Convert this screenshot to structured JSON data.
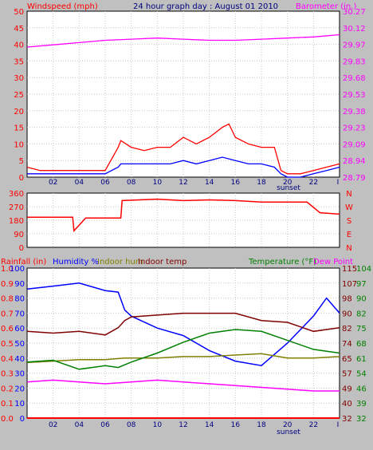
{
  "header": {
    "left_label": "Windspeed (mph)",
    "title": "24 hour graph day : August 01 2010",
    "right_label": "Barometer (in.)"
  },
  "colors": {
    "background": "#c0c0c0",
    "plot_bg": "#ffffff",
    "gust": "#ff0000",
    "wind_avg": "#0000ff",
    "barometer": "#ff00ff",
    "humidity": "#0000ff",
    "indoor_hum": "#808000",
    "indoor_temp": "#800000",
    "temperature": "#008000",
    "dew_point": "#ff00ff",
    "rainfall": "#ff0000",
    "direction": "#ff0000"
  },
  "bottom_header": {
    "rainfall": "Rainfall (in)",
    "humidity": "Humidity %",
    "indoor_hum": "Indoor hum",
    "indoor_temp": "Indoor temp",
    "temperature": "Temperature (°F)",
    "dew_point": "Dew Point"
  },
  "sunset_label": "sunset",
  "chart_data": [
    {
      "type": "line",
      "name": "wind-barometer",
      "x_ticks": [
        "02",
        "04",
        "06",
        "08",
        "10",
        "12",
        "14",
        "16",
        "18",
        "20",
        "22"
      ],
      "y_left_ticks": [
        "0",
        "5",
        "10",
        "15",
        "20",
        "25",
        "30",
        "35",
        "40",
        "45",
        "50"
      ],
      "y_right_ticks": [
        "28.79",
        "28.94",
        "29.09",
        "29.23",
        "29.38",
        "29.53",
        "29.68",
        "29.83",
        "29.97",
        "30.12",
        "30.27"
      ],
      "ylim_left": [
        0,
        50
      ],
      "ylim_right": [
        28.79,
        30.27
      ],
      "series": [
        {
          "name": "Windspeed (mph)",
          "axis": "left",
          "color": "gust",
          "x": [
            0,
            1,
            2,
            3,
            4,
            5,
            6,
            7,
            7.2,
            8,
            9,
            10,
            11,
            12,
            13,
            14,
            15,
            15.5,
            16,
            17,
            18,
            19,
            19.5,
            20,
            21,
            22,
            23,
            24
          ],
          "y": [
            3,
            2,
            2,
            2,
            2,
            2,
            2,
            9,
            11,
            9,
            8,
            9,
            9,
            12,
            10,
            12,
            15,
            16,
            12,
            10,
            9,
            9,
            2,
            1,
            1,
            2,
            3,
            4
          ]
        },
        {
          "name": "Windspeed avg",
          "axis": "left",
          "color": "wind_avg",
          "x": [
            0,
            1,
            2,
            3,
            4,
            5,
            6,
            7,
            7.2,
            8,
            9,
            10,
            11,
            12,
            13,
            14,
            15,
            16,
            17,
            18,
            19,
            19.5,
            20,
            21,
            22,
            23,
            24
          ],
          "y": [
            1,
            1,
            1,
            1,
            1,
            1,
            1,
            3,
            4,
            4,
            4,
            4,
            4,
            5,
            4,
            5,
            6,
            5,
            4,
            4,
            3,
            1,
            0,
            0,
            1,
            2,
            3
          ]
        },
        {
          "name": "Barometer (in.)",
          "axis": "right",
          "color": "barometer",
          "x": [
            0,
            2,
            4,
            6,
            8,
            10,
            12,
            14,
            16,
            18,
            20,
            22,
            24
          ],
          "y": [
            29.95,
            29.97,
            29.99,
            30.01,
            30.02,
            30.03,
            30.02,
            30.01,
            30.01,
            30.02,
            30.03,
            30.04,
            30.06
          ]
        }
      ]
    },
    {
      "type": "line",
      "name": "wind-direction",
      "y_left_ticks": [
        "0",
        "90",
        "180",
        "270",
        "360"
      ],
      "y_right_ticks": [
        "N",
        "E",
        "S",
        "W",
        "N"
      ],
      "ylim": [
        0,
        360
      ],
      "series": [
        {
          "name": "Wind direction",
          "color": "direction",
          "x": [
            0,
            3.5,
            3.6,
            4.5,
            7.2,
            7.3,
            10,
            12,
            14,
            16,
            18,
            19.5,
            21.5,
            22.5,
            24
          ],
          "y": [
            200,
            200,
            110,
            195,
            195,
            310,
            320,
            310,
            315,
            310,
            300,
            300,
            300,
            230,
            220
          ]
        }
      ]
    },
    {
      "type": "line",
      "name": "temperature-humidity",
      "x_ticks": [
        "02",
        "04",
        "06",
        "08",
        "10",
        "12",
        "14",
        "16",
        "18",
        "20",
        "22"
      ],
      "y_left_outer_ticks": [
        "0.0",
        "0.1",
        "0.2",
        "0.3",
        "0.4",
        "0.5",
        "0.6",
        "0.7",
        "0.8",
        "0.9",
        "1.0"
      ],
      "y_left_inner_ticks": [
        "0",
        "10",
        "20",
        "30",
        "40",
        "50",
        "60",
        "70",
        "80",
        "90",
        "100"
      ],
      "y_right_inner_ticks": [
        "32",
        "40",
        "49",
        "57",
        "65",
        "74",
        "82",
        "90",
        "98",
        "107",
        "115"
      ],
      "y_right_outer_ticks": [
        "32",
        "39",
        "46",
        "54",
        "61",
        "68",
        "75",
        "82",
        "90",
        "97",
        "104"
      ],
      "ylim_humidity": [
        0,
        100
      ],
      "ylim_temp": [
        32,
        115
      ],
      "ylim_rain": [
        0,
        1
      ],
      "series": [
        {
          "name": "Humidity %",
          "axis": "humidity",
          "color": "humidity",
          "x": [
            0,
            2,
            4,
            6,
            7,
            7.5,
            8,
            10,
            12,
            14,
            16,
            18,
            20,
            22,
            23,
            24
          ],
          "y": [
            86,
            88,
            90,
            85,
            84,
            72,
            68,
            60,
            55,
            45,
            38,
            35,
            50,
            68,
            80,
            70
          ]
        },
        {
          "name": "Indoor hum",
          "axis": "humidity",
          "color": "indoor_hum",
          "x": [
            0,
            2,
            4,
            6,
            7.5,
            10,
            12,
            14,
            16,
            18,
            20,
            22,
            24
          ],
          "y": [
            37,
            38,
            39,
            39,
            40,
            40,
            41,
            41,
            42,
            43,
            40,
            40,
            41
          ]
        },
        {
          "name": "Indoor temp",
          "axis": "temp",
          "color": "indoor_temp",
          "x": [
            0,
            2,
            4,
            6,
            7,
            7.5,
            8,
            10,
            12,
            14,
            16,
            18,
            20,
            22,
            24
          ],
          "y": [
            80,
            79,
            80,
            78,
            82,
            86,
            88,
            89,
            90,
            90,
            90,
            86,
            85,
            80,
            82
          ]
        },
        {
          "name": "Temperature (°F)",
          "axis": "temp",
          "color": "temperature",
          "x": [
            0,
            2,
            4,
            6,
            7,
            8,
            10,
            12,
            14,
            16,
            18,
            20,
            22,
            24
          ],
          "y": [
            63,
            64,
            59,
            61,
            60,
            63,
            68,
            74,
            79,
            81,
            80,
            75,
            70,
            68
          ]
        },
        {
          "name": "Dew Point",
          "axis": "temp",
          "color": "dew_point",
          "x": [
            0,
            2,
            4,
            6,
            8,
            10,
            12,
            14,
            16,
            18,
            20,
            22,
            24
          ],
          "y": [
            52,
            53,
            52,
            51,
            52,
            53,
            52,
            51,
            50,
            49,
            48,
            47,
            47
          ]
        },
        {
          "name": "Rainfall (in)",
          "axis": "rain",
          "color": "rainfall",
          "x": [
            0,
            24
          ],
          "y": [
            0,
            0
          ]
        }
      ]
    }
  ]
}
